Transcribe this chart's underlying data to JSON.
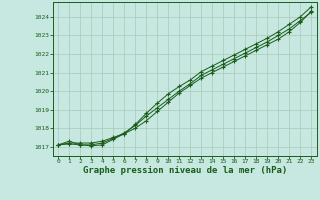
{
  "background_color": "#c6e8e0",
  "grid_color": "#a8c8b8",
  "line_color": "#1a5c1a",
  "marker_color": "#1a5c1a",
  "title": "Graphe pression niveau de la mer (hPa)",
  "title_fontsize": 6.5,
  "ylabel_values": [
    1017,
    1018,
    1019,
    1020,
    1021,
    1022,
    1023,
    1024
  ],
  "xlim": [
    -0.5,
    23.5
  ],
  "ylim": [
    1016.5,
    1024.8
  ],
  "series": {
    "line1": [
      1017.1,
      1017.2,
      1017.2,
      1017.2,
      1017.3,
      1017.5,
      1017.7,
      1018.0,
      1018.4,
      1018.9,
      1019.4,
      1019.9,
      1020.3,
      1020.7,
      1021.0,
      1021.3,
      1021.6,
      1021.9,
      1022.2,
      1022.5,
      1022.8,
      1023.2,
      1023.7,
      1024.3
    ],
    "line2": [
      1017.1,
      1017.15,
      1017.1,
      1017.1,
      1017.2,
      1017.45,
      1017.75,
      1018.15,
      1018.65,
      1019.1,
      1019.55,
      1020.0,
      1020.4,
      1020.85,
      1021.15,
      1021.45,
      1021.75,
      1022.05,
      1022.35,
      1022.65,
      1023.0,
      1023.35,
      1023.8,
      1024.25
    ],
    "line3": [
      1017.1,
      1017.3,
      1017.1,
      1017.05,
      1017.1,
      1017.4,
      1017.7,
      1018.2,
      1018.8,
      1019.35,
      1019.85,
      1020.25,
      1020.6,
      1021.05,
      1021.35,
      1021.65,
      1021.95,
      1022.25,
      1022.55,
      1022.85,
      1023.2,
      1023.6,
      1024.0,
      1024.55
    ]
  }
}
